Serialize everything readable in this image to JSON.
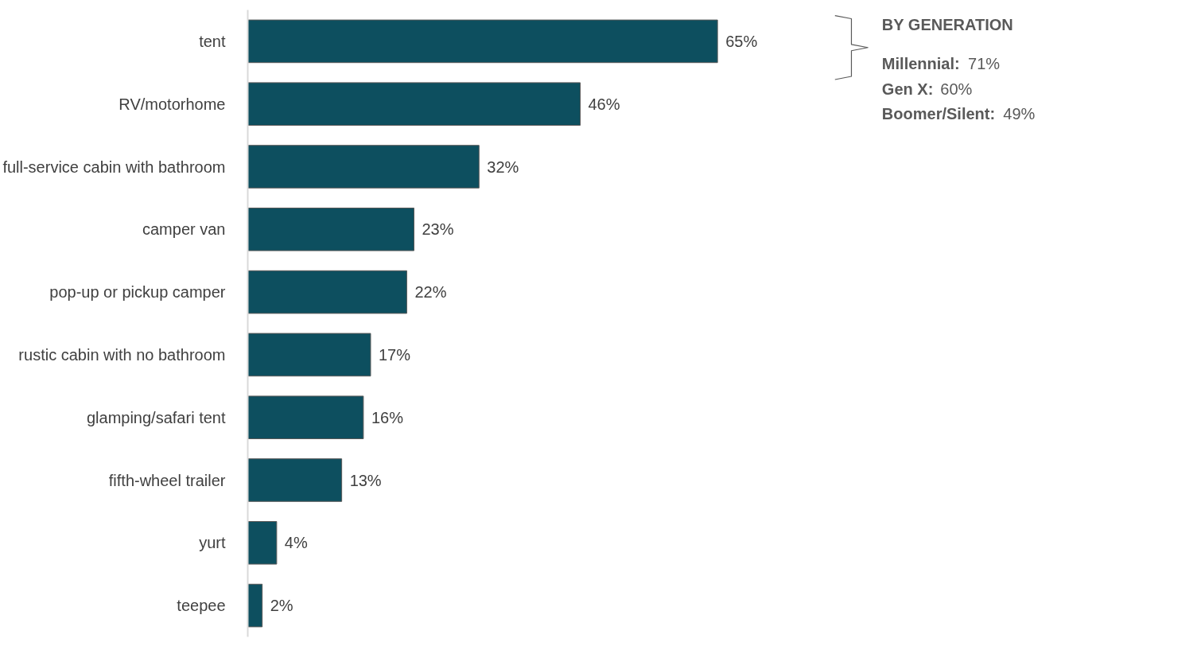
{
  "chart_data": {
    "type": "bar",
    "orientation": "horizontal",
    "categories": [
      "tent",
      "RV/motorhome",
      "full-service cabin with bathroom",
      "camper van",
      "pop-up or pickup camper",
      "rustic cabin with no bathroom",
      "glamping/safari tent",
      "fifth-wheel trailer",
      "yurt",
      "teepee"
    ],
    "values": [
      65,
      46,
      32,
      23,
      22,
      17,
      16,
      13,
      4,
      2
    ],
    "value_labels": [
      "65%",
      "46%",
      "32%",
      "23%",
      "22%",
      "17%",
      "16%",
      "13%",
      "4%",
      "2%"
    ],
    "color": "#0d4f5f",
    "annotations": [
      "BY GENERATION",
      "Millennial: 71%",
      "Gen X: 60%",
      "Boomer/Silent: 49%"
    ],
    "grid": false
  }
}
